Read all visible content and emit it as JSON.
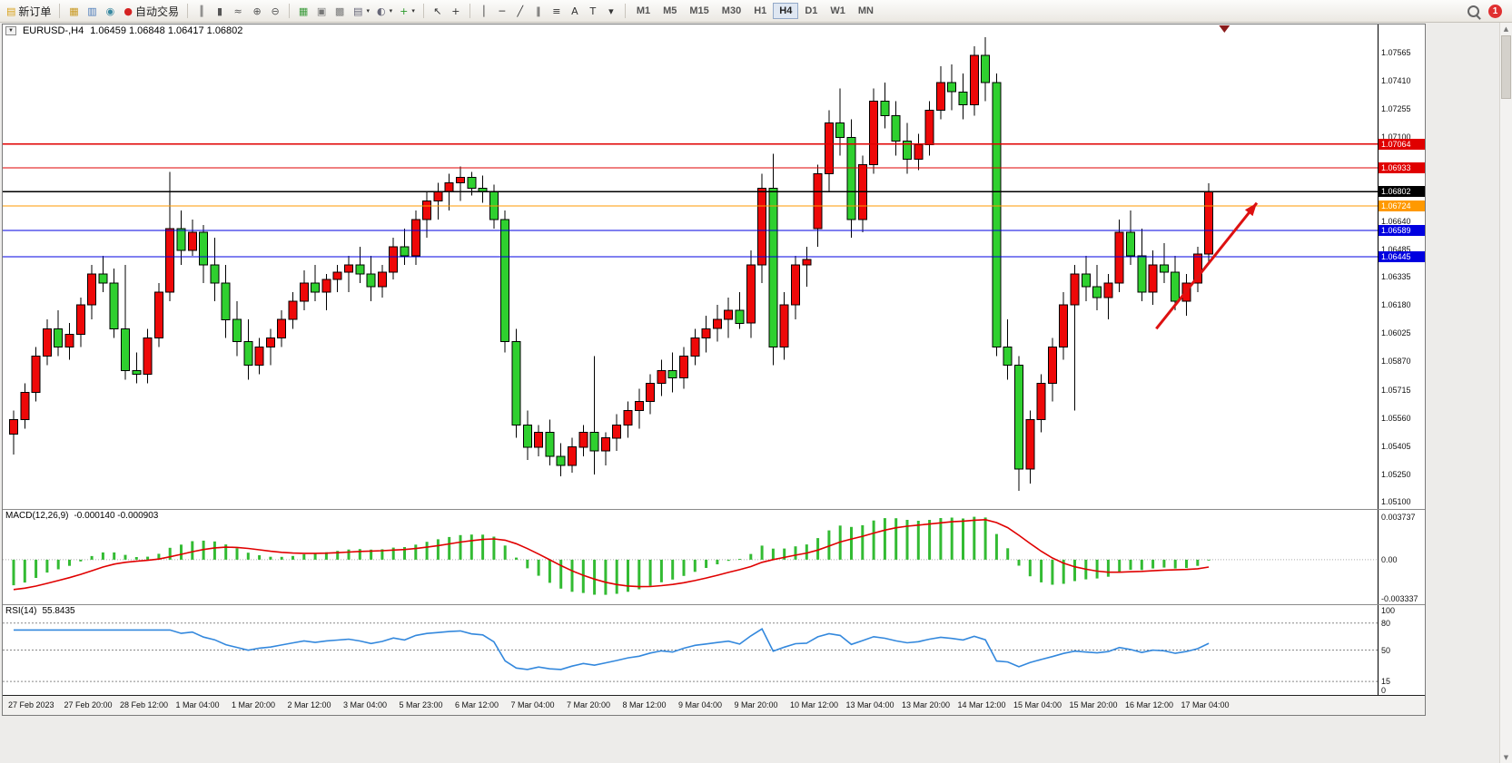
{
  "toolbar": {
    "new_order_label": "新订单",
    "autotrade_label": "自动交易",
    "new_order_icon": {
      "name": "new-order",
      "glyph": "▤",
      "color": "#d8a018"
    },
    "autotrade_icon": {
      "name": "autotrade",
      "glyph": "●",
      "color": "#d42222"
    },
    "left_icons": [
      {
        "name": "market-watch",
        "glyph": "▦",
        "color": "#c89820"
      },
      {
        "name": "data-window",
        "glyph": "▥",
        "color": "#4878b8"
      },
      {
        "name": "strategy-tester",
        "glyph": "◉",
        "color": "#3888a0"
      }
    ],
    "chart_type_icons": [
      {
        "name": "bar-chart",
        "glyph": "║",
        "color": "#555"
      },
      {
        "name": "candlestick-chart",
        "glyph": "▮",
        "color": "#555"
      },
      {
        "name": "line-chart",
        "glyph": "≈",
        "color": "#555"
      }
    ],
    "zoom_icons": [
      {
        "name": "zoom-in",
        "glyph": "⊕",
        "color": "#555"
      },
      {
        "name": "zoom-out",
        "glyph": "⊖",
        "color": "#555"
      }
    ],
    "window_icons": [
      {
        "name": "tile-windows",
        "glyph": "▦",
        "color": "#3a9a3a"
      },
      {
        "name": "cascade-windows",
        "glyph": "▣",
        "color": "#777"
      },
      {
        "name": "arrange-windows",
        "glyph": "▩",
        "color": "#777"
      }
    ],
    "chart_tool_icons": [
      {
        "name": "new-chart",
        "glyph": "▤",
        "color": "#667",
        "caret": true
      },
      {
        "name": "periods",
        "glyph": "◐",
        "color": "#667",
        "caret": true
      },
      {
        "name": "indicators",
        "glyph": "+",
        "color": "#2a9a2a",
        "caret": true
      }
    ],
    "cursor_icons": [
      {
        "name": "cursor",
        "glyph": "↖",
        "color": "#333"
      },
      {
        "name": "crosshair",
        "glyph": "+",
        "color": "#333"
      }
    ],
    "draw_icons": [
      {
        "name": "vertical-line",
        "glyph": "│",
        "color": "#333"
      },
      {
        "name": "horizontal-line",
        "glyph": "─",
        "color": "#333"
      },
      {
        "name": "trendline",
        "glyph": "╱",
        "color": "#333"
      },
      {
        "name": "equidistant-channel",
        "glyph": "∥",
        "color": "#333"
      },
      {
        "name": "fibonacci",
        "glyph": "≡",
        "color": "#333"
      },
      {
        "name": "text",
        "glyph": "A",
        "color": "#333"
      },
      {
        "name": "text-label",
        "glyph": "T",
        "color": "#333"
      },
      {
        "name": "arrows",
        "glyph": "▾",
        "color": "#333"
      }
    ],
    "timeframes": [
      "M1",
      "M5",
      "M15",
      "M30",
      "H1",
      "H4",
      "D1",
      "W1",
      "MN"
    ],
    "active_timeframe": "H4",
    "notification_count": "1"
  },
  "colors": {
    "bull": "#ee0808",
    "bear": "#2fd02f",
    "wick": "#000000",
    "macd_hist": "#33bb33",
    "macd_signal": "#e00000",
    "rsi_line": "#3388dd",
    "line_red": "#e00000",
    "line_orange": "#ff9900",
    "line_blue": "#0000e0",
    "line_black": "#000000"
  },
  "chart": {
    "symbol": "EURUSD-,H4",
    "ohlc_text": "1.06459 1.06848 1.06417 1.06802",
    "scale": {
      "top": 1.0772,
      "bottom": 1.0506
    },
    "label_every": 5,
    "shift_marker_index": 108.4,
    "price_axis": {
      "ticks": [
        "1.07565",
        "1.07410",
        "1.07255",
        "1.07100",
        "1.06945",
        "1.06790",
        "1.06640",
        "1.06485",
        "1.06335",
        "1.06180",
        "1.06025",
        "1.05870",
        "1.05715",
        "1.05560",
        "1.05405",
        "1.05250",
        "1.05100"
      ]
    },
    "hlines": [
      {
        "price": 1.07064,
        "label": "1.07064",
        "color": "#e00000"
      },
      {
        "price": 1.06933,
        "label": "1.06933",
        "color": "#e00000"
      },
      {
        "price": 1.06802,
        "label": "1.06802",
        "color": "#000000"
      },
      {
        "price": 1.06724,
        "label": "1.06724",
        "color": "#ff9900"
      },
      {
        "price": 1.06589,
        "label": "1.06589",
        "color": "#0000e0"
      },
      {
        "price": 1.06445,
        "label": "1.06445",
        "color": "#0000e0"
      }
    ],
    "arrow": {
      "from": {
        "index": 102.3,
        "price": 1.0605
      },
      "to": {
        "index": 111.3,
        "price": 1.0674
      },
      "color": "#dd1111"
    },
    "time_labels": [
      "27 Feb 2023",
      "27 Feb 20:00",
      "28 Feb 12:00",
      "1 Mar 04:00",
      "1 Mar 20:00",
      "2 Mar 12:00",
      "3 Mar 04:00",
      "5 Mar 23:00",
      "6 Mar 12:00",
      "7 Mar 04:00",
      "7 Mar 20:00",
      "8 Mar 12:00",
      "9 Mar 04:00",
      "9 Mar 20:00",
      "10 Mar 12:00",
      "13 Mar 04:00",
      "13 Mar 20:00",
      "14 Mar 12:00",
      "15 Mar 04:00",
      "15 Mar 20:00",
      "16 Mar 12:00",
      "17 Mar 04:00"
    ],
    "candles": [
      [
        1.0547,
        1.056,
        1.0536,
        1.0555
      ],
      [
        1.0555,
        1.0575,
        1.055,
        1.057
      ],
      [
        1.057,
        1.0595,
        1.0565,
        1.059
      ],
      [
        1.059,
        1.061,
        1.0585,
        1.0605
      ],
      [
        1.0605,
        1.0615,
        1.059,
        1.0595
      ],
      [
        1.0595,
        1.0608,
        1.0588,
        1.0602
      ],
      [
        1.0602,
        1.0622,
        1.0595,
        1.0618
      ],
      [
        1.0618,
        1.064,
        1.061,
        1.0635
      ],
      [
        1.0635,
        1.0645,
        1.0625,
        1.063
      ],
      [
        1.063,
        1.0638,
        1.06,
        1.0605
      ],
      [
        1.0605,
        1.064,
        1.0577,
        1.0582
      ],
      [
        1.0582,
        1.0592,
        1.0575,
        1.058
      ],
      [
        1.058,
        1.0605,
        1.0575,
        1.06
      ],
      [
        1.06,
        1.063,
        1.0595,
        1.0625
      ],
      [
        1.0625,
        1.0691,
        1.062,
        1.066
      ],
      [
        1.066,
        1.067,
        1.064,
        1.0648
      ],
      [
        1.0648,
        1.0665,
        1.0645,
        1.0658
      ],
      [
        1.0658,
        1.0662,
        1.063,
        1.064
      ],
      [
        1.064,
        1.0655,
        1.062,
        1.063
      ],
      [
        1.063,
        1.064,
        1.06,
        1.061
      ],
      [
        1.061,
        1.062,
        1.059,
        1.0598
      ],
      [
        1.0598,
        1.061,
        1.0577,
        1.0585
      ],
      [
        1.0585,
        1.06,
        1.058,
        1.0595
      ],
      [
        1.0595,
        1.0605,
        1.0585,
        1.06
      ],
      [
        1.06,
        1.0615,
        1.0595,
        1.061
      ],
      [
        1.061,
        1.0625,
        1.0605,
        1.062
      ],
      [
        1.062,
        1.0637,
        1.0615,
        1.063
      ],
      [
        1.063,
        1.064,
        1.062,
        1.0625
      ],
      [
        1.0625,
        1.0635,
        1.0615,
        1.0632
      ],
      [
        1.0632,
        1.064,
        1.0625,
        1.0636
      ],
      [
        1.0636,
        1.0645,
        1.0625,
        1.064
      ],
      [
        1.064,
        1.065,
        1.063,
        1.0635
      ],
      [
        1.0635,
        1.0645,
        1.062,
        1.0628
      ],
      [
        1.0628,
        1.064,
        1.0622,
        1.0636
      ],
      [
        1.0636,
        1.0655,
        1.0632,
        1.065
      ],
      [
        1.065,
        1.066,
        1.064,
        1.0645
      ],
      [
        1.0645,
        1.067,
        1.064,
        1.0665
      ],
      [
        1.0665,
        1.068,
        1.0655,
        1.0675
      ],
      [
        1.0675,
        1.0685,
        1.0665,
        1.068
      ],
      [
        1.068,
        1.069,
        1.067,
        1.0685
      ],
      [
        1.0685,
        1.0694,
        1.0675,
        1.0688
      ],
      [
        1.0688,
        1.0691,
        1.0678,
        1.0682
      ],
      [
        1.0682,
        1.0689,
        1.0674,
        1.068
      ],
      [
        1.068,
        1.0684,
        1.066,
        1.0665
      ],
      [
        1.0665,
        1.067,
        1.0592,
        1.0598
      ],
      [
        1.0598,
        1.0605,
        1.0545,
        1.0552
      ],
      [
        1.0552,
        1.056,
        1.0533,
        1.054
      ],
      [
        1.054,
        1.0552,
        1.0535,
        1.0548
      ],
      [
        1.0548,
        1.0555,
        1.053,
        1.0535
      ],
      [
        1.0535,
        1.0542,
        1.0524,
        1.053
      ],
      [
        1.053,
        1.0545,
        1.0526,
        1.054
      ],
      [
        1.054,
        1.0552,
        1.0535,
        1.0548
      ],
      [
        1.0548,
        1.059,
        1.0525,
        1.0538
      ],
      [
        1.0538,
        1.0548,
        1.053,
        1.0545
      ],
      [
        1.0545,
        1.0558,
        1.0538,
        1.0552
      ],
      [
        1.0552,
        1.0565,
        1.0545,
        1.056
      ],
      [
        1.056,
        1.0572,
        1.055,
        1.0565
      ],
      [
        1.0565,
        1.058,
        1.0558,
        1.0575
      ],
      [
        1.0575,
        1.0588,
        1.0568,
        1.0582
      ],
      [
        1.0582,
        1.0592,
        1.057,
        1.0578
      ],
      [
        1.0578,
        1.0595,
        1.0572,
        1.059
      ],
      [
        1.059,
        1.0605,
        1.0585,
        1.06
      ],
      [
        1.06,
        1.0612,
        1.0592,
        1.0605
      ],
      [
        1.0605,
        1.0618,
        1.0598,
        1.061
      ],
      [
        1.061,
        1.0622,
        1.06,
        1.0615
      ],
      [
        1.0615,
        1.0625,
        1.0605,
        1.0608
      ],
      [
        1.0608,
        1.0648,
        1.06,
        1.064
      ],
      [
        1.064,
        1.069,
        1.063,
        1.0682
      ],
      [
        1.0682,
        1.0701,
        1.0585,
        1.0595
      ],
      [
        1.0595,
        1.0625,
        1.0588,
        1.0618
      ],
      [
        1.0618,
        1.0645,
        1.061,
        1.064
      ],
      [
        1.064,
        1.065,
        1.0628,
        1.0643
      ],
      [
        1.066,
        1.0695,
        1.065,
        1.069
      ],
      [
        1.069,
        1.0725,
        1.068,
        1.0718
      ],
      [
        1.0718,
        1.0737,
        1.07,
        1.071
      ],
      [
        1.071,
        1.072,
        1.0655,
        1.0665
      ],
      [
        1.0665,
        1.07,
        1.0658,
        1.0695
      ],
      [
        1.0695,
        1.0737,
        1.069,
        1.073
      ],
      [
        1.073,
        1.074,
        1.0715,
        1.0722
      ],
      [
        1.0722,
        1.073,
        1.07,
        1.0708
      ],
      [
        1.0708,
        1.0718,
        1.069,
        1.0698
      ],
      [
        1.0698,
        1.0712,
        1.0692,
        1.0706
      ],
      [
        1.0706,
        1.073,
        1.07,
        1.0725
      ],
      [
        1.0725,
        1.0749,
        1.072,
        1.074
      ],
      [
        1.074,
        1.075,
        1.0725,
        1.0735
      ],
      [
        1.0735,
        1.0745,
        1.072,
        1.0728
      ],
      [
        1.0728,
        1.076,
        1.0722,
        1.0755
      ],
      [
        1.0755,
        1.0765,
        1.073,
        1.074
      ],
      [
        1.074,
        1.0745,
        1.059,
        1.0595
      ],
      [
        1.0595,
        1.061,
        1.0577,
        1.0585
      ],
      [
        1.0585,
        1.059,
        1.0516,
        1.0528
      ],
      [
        1.0528,
        1.056,
        1.052,
        1.0555
      ],
      [
        1.0555,
        1.058,
        1.0548,
        1.0575
      ],
      [
        1.0575,
        1.06,
        1.0565,
        1.0595
      ],
      [
        1.0595,
        1.0625,
        1.0588,
        1.0618
      ],
      [
        1.0618,
        1.064,
        1.056,
        1.0635
      ],
      [
        1.0635,
        1.0645,
        1.062,
        1.0628
      ],
      [
        1.0628,
        1.064,
        1.0615,
        1.0622
      ],
      [
        1.0622,
        1.0635,
        1.061,
        1.063
      ],
      [
        1.063,
        1.0665,
        1.0625,
        1.0658
      ],
      [
        1.0658,
        1.067,
        1.064,
        1.0645
      ],
      [
        1.0645,
        1.066,
        1.062,
        1.0625
      ],
      [
        1.0625,
        1.0648,
        1.0618,
        1.064
      ],
      [
        1.064,
        1.0652,
        1.063,
        1.0636
      ],
      [
        1.0636,
        1.0645,
        1.0615,
        1.062
      ],
      [
        1.062,
        1.0635,
        1.0612,
        1.063
      ],
      [
        1.063,
        1.065,
        1.0625,
        1.06459
      ],
      [
        1.06459,
        1.06848,
        1.06417,
        1.06802
      ]
    ]
  },
  "macd": {
    "title": "MACD(12,26,9)",
    "values_text": "-0.000140 -0.000903",
    "fast": 12,
    "slow": 26,
    "signal_period": 9,
    "max": 0.003737,
    "min": -0.003337,
    "axis_max_label": "0.003737",
    "axis_zero_label": "0.00",
    "axis_min_label": "-0.003337"
  },
  "rsi": {
    "title": "RSI(14)",
    "value_text": "55.8435",
    "period": 14,
    "levels": [
      80,
      50,
      15
    ],
    "axis_labels": [
      "100",
      "80",
      "50",
      "15",
      "0"
    ]
  }
}
